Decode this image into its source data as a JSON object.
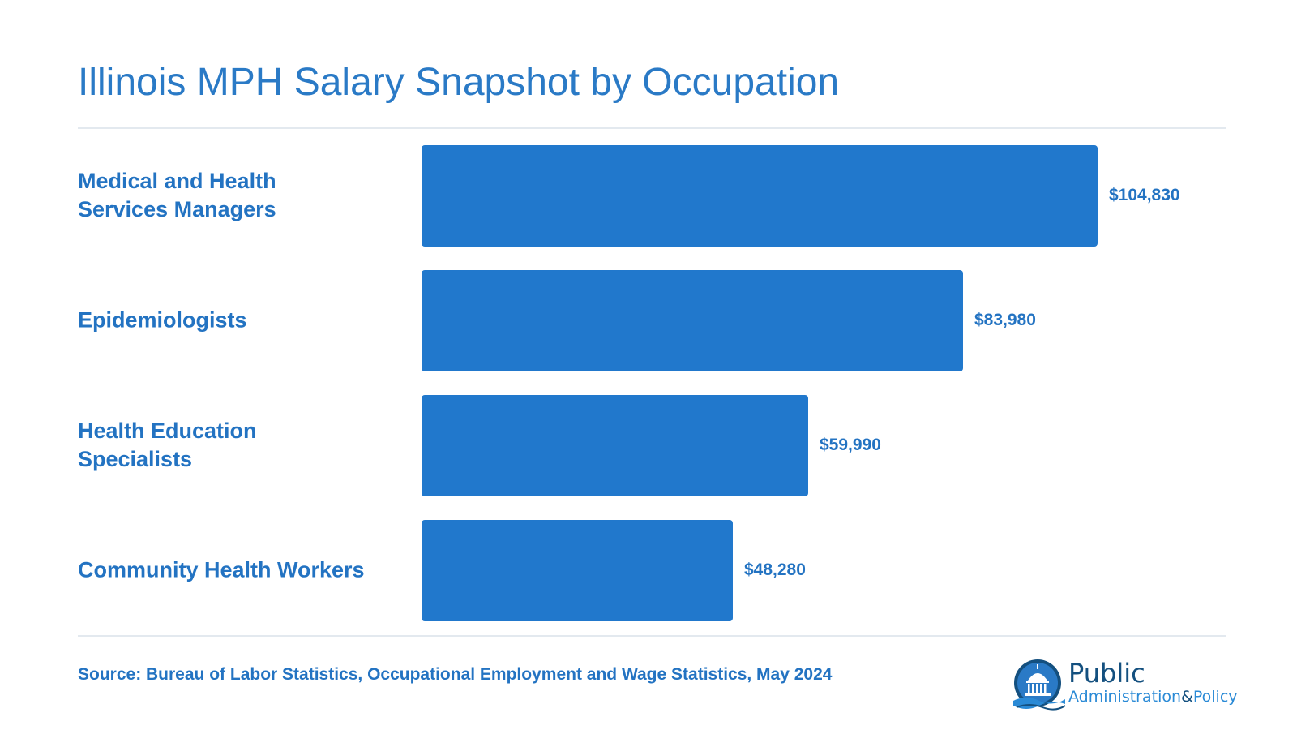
{
  "chart_data": {
    "type": "bar",
    "orientation": "horizontal",
    "title": "Illinois MPH Salary Snapshot by Occupation",
    "categories": [
      [
        "Medical and Health",
        "Services Managers"
      ],
      [
        "Epidemiologists"
      ],
      [
        "Health Education",
        "Specialists"
      ],
      [
        "Community Health Workers"
      ]
    ],
    "values": [
      104830,
      83980,
      59990,
      48280
    ],
    "value_labels": [
      "$104,830",
      "$83,980",
      "$59,990",
      "$48,280"
    ],
    "xlim": [
      0,
      104830
    ],
    "grid": false,
    "legend": "none",
    "bar_color": "#2178cc",
    "label_color": "#2373c2"
  },
  "footer": {
    "source": "Source: Bureau of Labor Statistics, Occupational Employment and Wage Statistics, May 2024"
  },
  "logo": {
    "line1": "Public",
    "line2_a": "Administration",
    "line2_amp": "&",
    "line2_b": "Policy",
    "icon": "capitol-dome-icon"
  }
}
